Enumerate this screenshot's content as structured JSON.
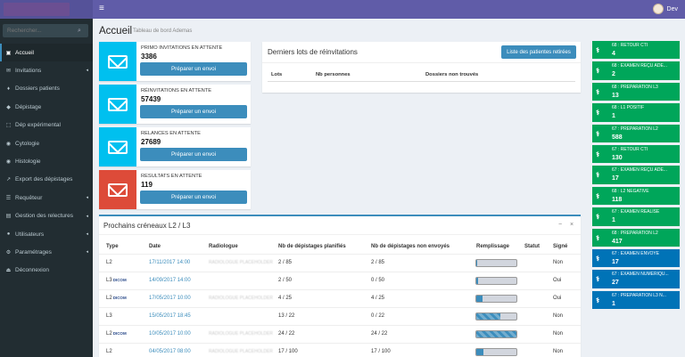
{
  "header": {
    "user_name": "Dev"
  },
  "sidebar": {
    "search_placeholder": "Rechercher...",
    "items": [
      {
        "label": "Accueil",
        "icon": "dashboard-icon",
        "glyph": "▣",
        "active": true,
        "chevron": false
      },
      {
        "label": "Invitations",
        "icon": "envelope-icon",
        "glyph": "✉",
        "active": false,
        "chevron": true
      },
      {
        "label": "Dossiers patients",
        "icon": "folder-icon",
        "glyph": "♦",
        "active": false,
        "chevron": false
      },
      {
        "label": "Dépistage",
        "icon": "tag-icon",
        "glyph": "◆",
        "active": false,
        "chevron": false
      },
      {
        "label": "Dép expérimental",
        "icon": "flask-icon",
        "glyph": "⬚",
        "active": false,
        "chevron": false
      },
      {
        "label": "Cytologie",
        "icon": "circle-icon",
        "glyph": "◉",
        "active": false,
        "chevron": false
      },
      {
        "label": "Histologie",
        "icon": "circle-icon",
        "glyph": "◉",
        "active": false,
        "chevron": false
      },
      {
        "label": "Export des dépistages",
        "icon": "export-icon",
        "glyph": "↗",
        "active": false,
        "chevron": false
      },
      {
        "label": "Requêteur",
        "icon": "list-icon",
        "glyph": "☰",
        "active": false,
        "chevron": true
      },
      {
        "label": "Gestion des relectures",
        "icon": "chart-icon",
        "glyph": "▤",
        "active": false,
        "chevron": true
      },
      {
        "label": "Utilisateurs",
        "icon": "users-icon",
        "glyph": "●",
        "active": false,
        "chevron": true
      },
      {
        "label": "Paramétrages",
        "icon": "gear-icon",
        "glyph": "⚙",
        "active": false,
        "chevron": true
      },
      {
        "label": "Déconnexion",
        "icon": "logout-icon",
        "glyph": "⏏",
        "active": false,
        "chevron": false
      }
    ]
  },
  "page": {
    "title": "Accueil",
    "subtitle": "Tableau de bord Ademas"
  },
  "info_boxes": [
    {
      "label": "PRIMO INVITATIONS EN ATTENTE",
      "count": "3386",
      "button": "Préparer un envoi",
      "color": "#00c0ef"
    },
    {
      "label": "RÉINVITATIONS EN ATTENTE",
      "count": "57439",
      "button": "Préparer un envoi",
      "color": "#00c0ef"
    },
    {
      "label": "RELANCES EN ATTENTE",
      "count": "27689",
      "button": "Préparer un envoi",
      "color": "#00c0ef"
    },
    {
      "label": "RESULTATS EN ATTENTE",
      "count": "119",
      "button": "Préparer un envoi",
      "color": "#dd4b39"
    }
  ],
  "lots": {
    "title": "Derniers lots de réinvitations",
    "button": "Liste des patientes retirées",
    "headers": [
      "Lots",
      "Nb personnes",
      "Dossiers non trouvés"
    ]
  },
  "statuses": [
    {
      "label": "68 : RETOUR CTI",
      "count": "4",
      "color": "#00a65a"
    },
    {
      "label": "68 : EXAMEN REÇU ADE...",
      "count": "2",
      "color": "#00a65a"
    },
    {
      "label": "68 : PRÉPARATION L3",
      "count": "13",
      "color": "#00a65a"
    },
    {
      "label": "68 : L1 POSITIF",
      "count": "1",
      "color": "#00a65a"
    },
    {
      "label": "67 : PRÉPARATION L2",
      "count": "588",
      "color": "#00a65a"
    },
    {
      "label": "67 : RETOUR CTI",
      "count": "130",
      "color": "#00a65a"
    },
    {
      "label": "67 : EXAMEN REÇU ADE...",
      "count": "17",
      "color": "#00a65a"
    },
    {
      "label": "68 : L2 NÉGATIVE",
      "count": "118",
      "color": "#00a65a"
    },
    {
      "label": "67 : EXAMEN RÉALISÉ",
      "count": "1",
      "color": "#00a65a"
    },
    {
      "label": "68 : PRÉPARATION L2",
      "count": "417",
      "color": "#00a65a"
    },
    {
      "label": "67 : EXAMEN ENVOYÉ",
      "count": "17",
      "color": "#0073b7"
    },
    {
      "label": "67 : EXAMEN NUMÉRIQU...",
      "count": "27",
      "color": "#0073b7"
    },
    {
      "label": "67 : PRÉPARATION L3 N...",
      "count": "1",
      "color": "#0073b7"
    }
  ],
  "creneaux": {
    "title": "Prochains créneaux L2 / L3",
    "headers": [
      "Type",
      "Date",
      "Radiologue",
      "Nb de dépistages planifiés",
      "Nb de dépistages non envoyés",
      "Remplissage",
      "Statut",
      "Signé"
    ],
    "rows": [
      {
        "type": "L2",
        "dicom": "",
        "date": "17/11/2017 14:00",
        "radiologue": "RADIOLOGUE PLACEHOLDER",
        "planifies": "2 / 85",
        "non_envoyes": "2 / 85",
        "fill": 0.02,
        "striped": false,
        "statut": "",
        "signe": "Non"
      },
      {
        "type": "L3",
        "dicom": "DICOM",
        "date": "14/09/2017 14:00",
        "radiologue": "",
        "planifies": "2 / 50",
        "non_envoyes": "0 / 50",
        "fill": 0.04,
        "striped": false,
        "statut": "",
        "signe": "Oui"
      },
      {
        "type": "L2",
        "dicom": "DICOM",
        "date": "17/05/2017 10:00",
        "radiologue": "RADIOLOGUE PLACEHOLDER",
        "planifies": "4 / 25",
        "non_envoyes": "4 / 25",
        "fill": 0.16,
        "striped": false,
        "statut": "",
        "signe": "Oui"
      },
      {
        "type": "L3",
        "dicom": "",
        "date": "15/05/2017 18:45",
        "radiologue": "",
        "planifies": "13 / 22",
        "non_envoyes": "0 / 22",
        "fill": 0.59,
        "striped": true,
        "statut": "",
        "signe": "Non"
      },
      {
        "type": "L2",
        "dicom": "DICOM",
        "date": "10/05/2017 10:00",
        "radiologue": "RADIOLOGUE PLACEHOLDER",
        "planifies": "24 / 22",
        "non_envoyes": "24 / 22",
        "fill": 1.0,
        "striped": true,
        "statut": "",
        "signe": "Non"
      },
      {
        "type": "L2",
        "dicom": "",
        "date": "04/05/2017 08:00",
        "radiologue": "RADIOLOGUE PLACEHOLDER",
        "planifies": "17 / 100",
        "non_envoyes": "17 / 100",
        "fill": 0.17,
        "striped": false,
        "statut": "",
        "signe": "Non"
      }
    ]
  }
}
